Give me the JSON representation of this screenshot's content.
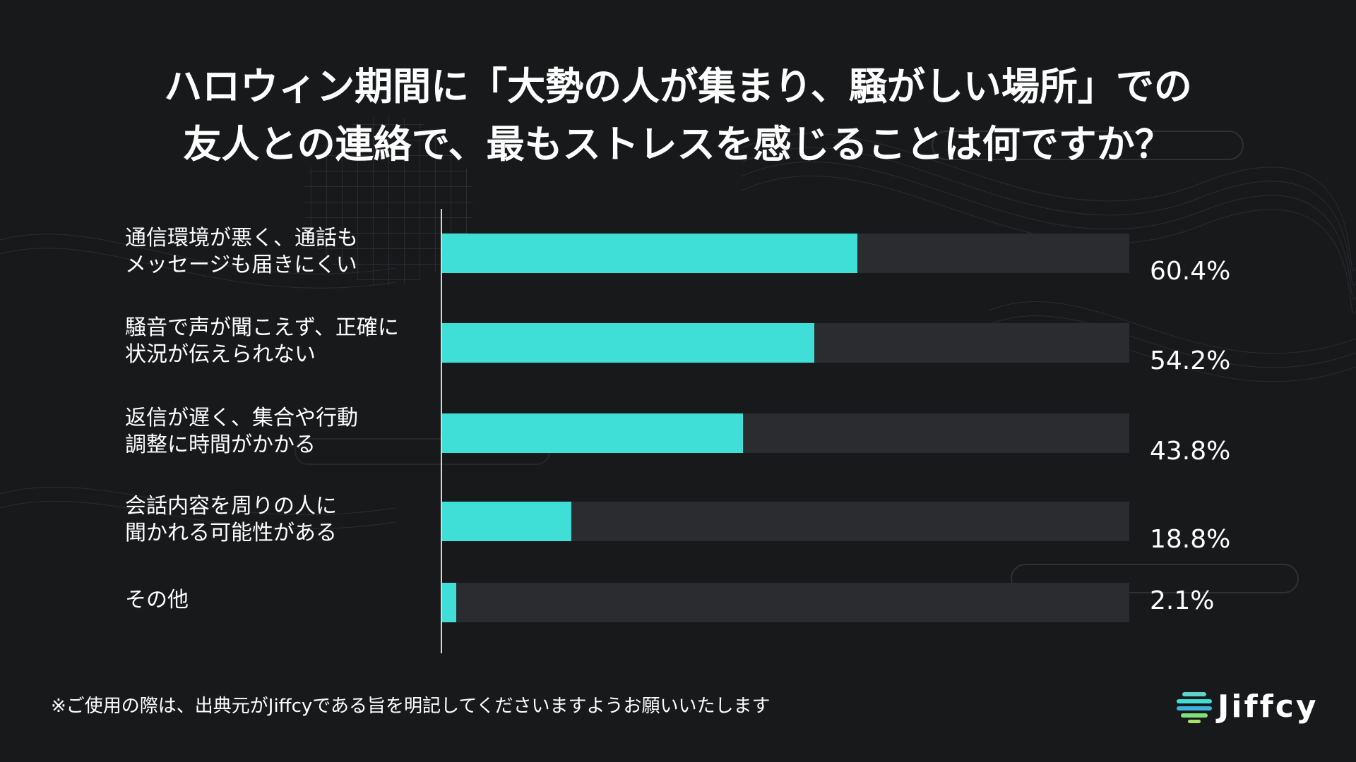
{
  "title": {
    "line1": "ハロウィン期間に「大勢の人が集まり、騒がしい場所」での",
    "line2": "友人との連絡で、最もストレスを感じることは何ですか？"
  },
  "colors": {
    "background": "#18191b",
    "bar": "#3fded6",
    "track": "#2a2c30",
    "text": "#ffffff"
  },
  "chart_data": {
    "type": "bar",
    "orientation": "horizontal",
    "categories": [
      [
        "通信環境が悪く、通話も",
        "メッセージも届きにくい"
      ],
      [
        "騒音で声が聞こえず、正確に",
        "状況が伝えられない"
      ],
      [
        "返信が遅く、集合や行動",
        "調整に時間がかかる"
      ],
      [
        "会話内容を周りの人に",
        "聞かれる可能性がある"
      ],
      [
        "その他"
      ]
    ],
    "values": [
      60.4,
      54.2,
      43.8,
      18.8,
      2.1
    ],
    "value_labels": [
      "60.4%",
      "54.2%",
      "43.8%",
      "18.8%",
      "2.1%"
    ],
    "xlim": [
      0,
      100
    ],
    "grid": false,
    "legend": "none"
  },
  "footnote": "※ご使用の際は、出典元がJiffcyである旨を明記してくださいますようお願いいたします",
  "logo": {
    "text": "Jiffcy",
    "icon": "jiffcy-logo-icon"
  }
}
